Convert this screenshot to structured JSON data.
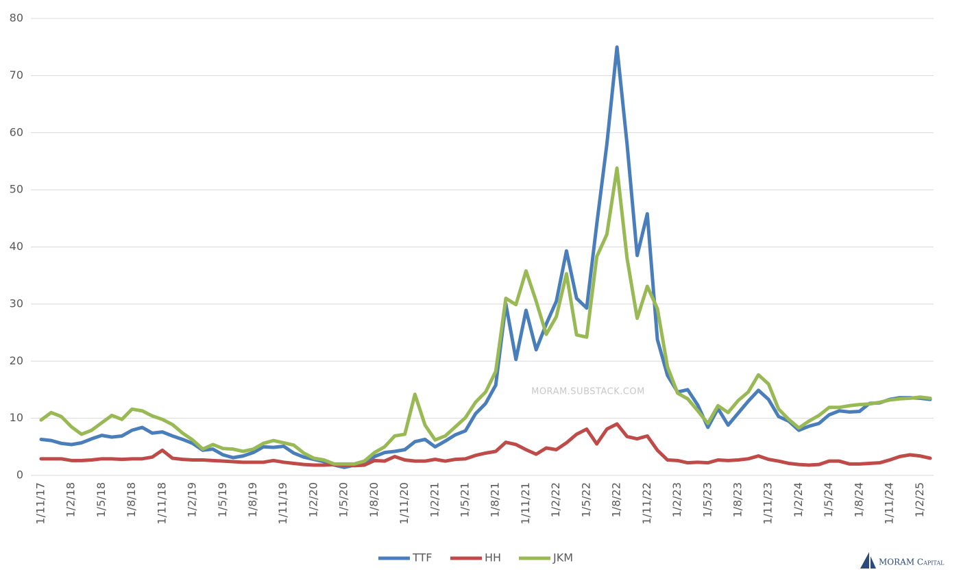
{
  "chart_data": {
    "type": "line",
    "categories": [
      "1/11/17",
      null,
      null,
      "1/2/18",
      null,
      null,
      "1/5/18",
      null,
      null,
      "1/8/18",
      null,
      null,
      "1/11/18",
      null,
      null,
      "1/2/19",
      null,
      null,
      "1/5/19",
      null,
      null,
      "1/8/19",
      null,
      null,
      "1/11/19",
      null,
      null,
      "1/2/20",
      null,
      null,
      "1/5/20",
      null,
      null,
      "1/8/20",
      null,
      null,
      "1/11/20",
      null,
      null,
      "1/2/21",
      null,
      null,
      "1/5/21",
      null,
      null,
      "1/8/21",
      null,
      null,
      "1/11/21",
      null,
      null,
      "1/2/22",
      null,
      null,
      "1/5/22",
      null,
      null,
      "1/8/22",
      null,
      null,
      "1/11/22",
      null,
      null,
      "1/2/23",
      null,
      null,
      "1/5/23",
      null,
      null,
      "1/8/23",
      null,
      null,
      "1/11/23",
      null,
      null,
      "1/2/24",
      null,
      null,
      "1/5/24",
      null,
      null,
      "1/8/24",
      null,
      null,
      "1/11/24",
      null,
      null,
      "1/2/25",
      null
    ],
    "series": [
      {
        "name": "TTF",
        "color": "#4a7ebb",
        "values": [
          6.3,
          6.1,
          5.6,
          5.4,
          5.7,
          6.4,
          7.0,
          6.7,
          6.9,
          7.9,
          8.4,
          7.4,
          7.6,
          6.9,
          6.3,
          5.6,
          4.4,
          4.6,
          3.6,
          3.1,
          3.4,
          4.0,
          5.0,
          4.9,
          5.1,
          3.9,
          3.2,
          2.8,
          2.4,
          1.8,
          1.4,
          1.8,
          2.0,
          3.3,
          4.0,
          4.2,
          4.5,
          5.9,
          6.3,
          5.0,
          6.0,
          7.1,
          7.8,
          10.8,
          12.6,
          15.8,
          30.0,
          20.3,
          28.9,
          22.0,
          26.5,
          30.5,
          39.3,
          31.0,
          29.3,
          44.0,
          58.0,
          75.0,
          58.0,
          38.5,
          45.8,
          23.8,
          17.5,
          14.6,
          15.0,
          12.3,
          8.4,
          11.7,
          8.8,
          10.9,
          13.0,
          14.9,
          13.3,
          10.3,
          9.5,
          7.9,
          8.6,
          9.1,
          10.6,
          11.3,
          11.1,
          11.2,
          12.6,
          12.7,
          13.3,
          13.6,
          13.6,
          13.5,
          13.3
        ]
      },
      {
        "name": "HH",
        "color": "#be4b48",
        "values": [
          2.9,
          2.9,
          2.9,
          2.6,
          2.6,
          2.7,
          2.9,
          2.9,
          2.8,
          2.9,
          2.9,
          3.2,
          4.4,
          3.0,
          2.8,
          2.7,
          2.7,
          2.6,
          2.5,
          2.4,
          2.3,
          2.3,
          2.3,
          2.6,
          2.3,
          2.1,
          1.9,
          1.8,
          1.8,
          1.9,
          1.8,
          1.7,
          1.8,
          2.6,
          2.5,
          3.3,
          2.7,
          2.5,
          2.5,
          2.8,
          2.5,
          2.8,
          2.9,
          3.5,
          3.9,
          4.2,
          5.8,
          5.4,
          4.5,
          3.7,
          4.8,
          4.5,
          5.7,
          7.2,
          8.1,
          5.5,
          8.1,
          9.0,
          6.8,
          6.4,
          6.9,
          4.4,
          2.7,
          2.6,
          2.2,
          2.3,
          2.2,
          2.7,
          2.6,
          2.7,
          2.9,
          3.4,
          2.8,
          2.5,
          2.1,
          1.9,
          1.8,
          1.9,
          2.5,
          2.5,
          2.0,
          2.0,
          2.1,
          2.2,
          2.7,
          3.3,
          3.6,
          3.4,
          3.0
        ]
      },
      {
        "name": "JKM",
        "color": "#98b954",
        "values": [
          9.7,
          11.0,
          10.3,
          8.5,
          7.2,
          7.9,
          9.2,
          10.5,
          9.8,
          11.6,
          11.3,
          10.4,
          9.8,
          8.9,
          7.4,
          6.2,
          4.6,
          5.4,
          4.7,
          4.6,
          4.2,
          4.6,
          5.6,
          6.1,
          5.7,
          5.3,
          3.9,
          3.0,
          2.7,
          2.0,
          2.0,
          2.0,
          2.5,
          4.0,
          5.0,
          6.9,
          7.2,
          14.2,
          8.8,
          6.2,
          6.9,
          8.5,
          10.1,
          12.8,
          14.6,
          18.2,
          31.0,
          29.9,
          35.8,
          30.5,
          24.7,
          27.8,
          35.3,
          24.6,
          24.2,
          38.3,
          42.2,
          53.8,
          38.0,
          27.5,
          33.1,
          29.2,
          19.0,
          14.4,
          13.4,
          11.3,
          9.1,
          12.2,
          11.0,
          13.1,
          14.6,
          17.6,
          16.0,
          11.6,
          9.8,
          8.3,
          9.5,
          10.5,
          11.9,
          11.9,
          12.2,
          12.4,
          12.5,
          12.8,
          13.2,
          13.4,
          13.5,
          13.7,
          13.5
        ]
      }
    ],
    "ylim": [
      0,
      80
    ],
    "yticks": [
      0,
      10,
      20,
      30,
      40,
      50,
      60,
      70,
      80
    ],
    "grid": true,
    "legend": "bottom",
    "annotations": [
      "MORAM.SUBSTACK.COM",
      "MORAM Capital"
    ]
  }
}
